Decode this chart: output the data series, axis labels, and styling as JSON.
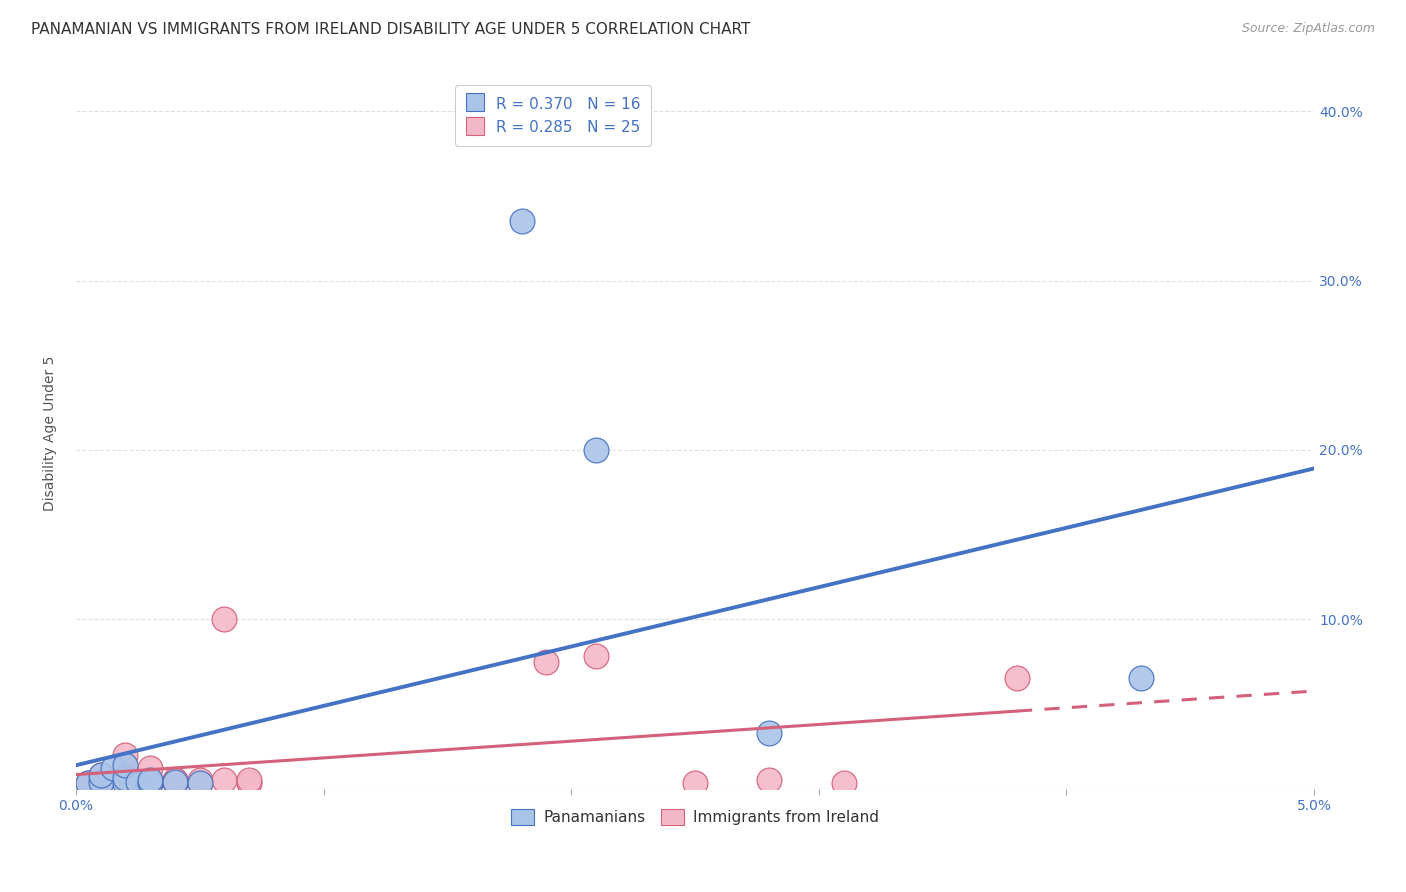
{
  "title": "PANAMANIAN VS IMMIGRANTS FROM IRELAND DISABILITY AGE UNDER 5 CORRELATION CHART",
  "source": "Source: ZipAtlas.com",
  "ylabel": "Disability Age Under 5",
  "xlim": [
    0.0,
    0.05
  ],
  "ylim": [
    0.0,
    0.42
  ],
  "background_color": "#ffffff",
  "grid_color": "#e0e0e0",
  "pan_color": "#aac4e8",
  "ire_color": "#f5b8c8",
  "pan_line_color": "#4472c4",
  "ire_line_color": "#d4607a",
  "pan_R": 0.37,
  "pan_N": 16,
  "ire_R": 0.285,
  "ire_N": 25,
  "pan_x": [
    0.0005,
    0.001,
    0.001,
    0.0015,
    0.002,
    0.002,
    0.002,
    0.0025,
    0.003,
    0.003,
    0.004,
    0.005,
    0.018,
    0.021,
    0.028,
    0.043
  ],
  "pan_y": [
    0.003,
    0.004,
    0.008,
    0.012,
    0.003,
    0.006,
    0.014,
    0.004,
    0.003,
    0.005,
    0.004,
    0.003,
    0.335,
    0.2,
    0.033,
    0.065
  ],
  "ire_x": [
    0.0005,
    0.001,
    0.001,
    0.002,
    0.002,
    0.002,
    0.003,
    0.003,
    0.003,
    0.003,
    0.004,
    0.004,
    0.004,
    0.005,
    0.005,
    0.006,
    0.006,
    0.007,
    0.007,
    0.019,
    0.021,
    0.025,
    0.028,
    0.031,
    0.038
  ],
  "ire_y": [
    0.003,
    0.004,
    0.008,
    0.004,
    0.008,
    0.02,
    0.003,
    0.005,
    0.012,
    0.003,
    0.003,
    0.005,
    0.005,
    0.003,
    0.005,
    0.1,
    0.005,
    0.003,
    0.005,
    0.075,
    0.078,
    0.003,
    0.005,
    0.003,
    0.065
  ],
  "title_fontsize": 11,
  "axis_label_fontsize": 10,
  "tick_fontsize": 10,
  "legend_fontsize": 11,
  "source_fontsize": 9
}
